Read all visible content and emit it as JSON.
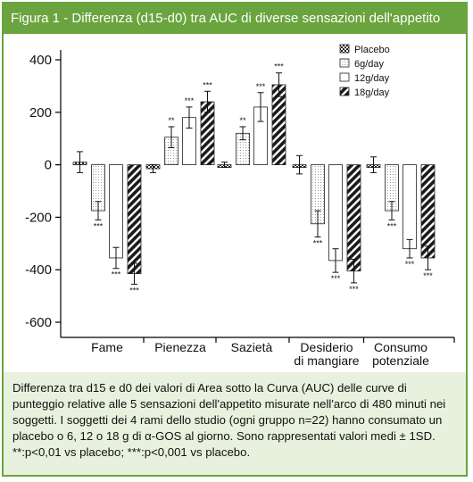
{
  "header": {
    "title": "Figura 1 - Differenza (d15-d0) tra AUC di diverse sensazioni dell'appetito"
  },
  "caption": {
    "text": "Differenza tra d15 e d0 dei valori di Area sotto la Curva (AUC) delle curve di punteggio relative alle 5 sensazioni dell'appetito misurate nell'arco di 480 minuti nei soggetti. I soggetti dei 4 rami dello studio (ogni gruppo n=22) hanno consumato un placebo o 6, 12 o 18 g di α-GOS al giorno. Sono rappresentati valori medi ± 1SD. **:p<0,01 vs placebo; ***:p<0,001 vs placebo."
  },
  "chart_data": {
    "type": "bar",
    "title": "",
    "xlabel": "",
    "ylabel": "",
    "ylim": [
      -650,
      430
    ],
    "yticks": [
      400,
      200,
      0,
      -200,
      -400,
      -600
    ],
    "categories": [
      "Fame",
      "Pienezza",
      "Sazietà",
      "Desiderio di mangiare",
      "Consumo potenziale"
    ],
    "category_labels": [
      [
        "Fame"
      ],
      [
        "Pienezza"
      ],
      [
        "Sazietà"
      ],
      [
        "Desiderio",
        "di mangiare"
      ],
      [
        "Consumo",
        "potenziale"
      ]
    ],
    "legend_position": "top-right",
    "series": [
      {
        "name": "Placebo",
        "pattern": "checker",
        "values": [
          10,
          -15,
          0,
          0,
          0
        ],
        "errors": [
          40,
          15,
          10,
          35,
          30
        ],
        "sig": [
          "",
          "",
          "",
          "",
          ""
        ]
      },
      {
        "name": "6g/day",
        "pattern": "dots",
        "values": [
          -175,
          105,
          120,
          -225,
          -175
        ],
        "errors": [
          35,
          40,
          25,
          50,
          35
        ],
        "sig": [
          "***",
          "**",
          "**",
          "***",
          "***"
        ]
      },
      {
        "name": "12g/day",
        "pattern": "white",
        "values": [
          -355,
          180,
          220,
          -365,
          -320
        ],
        "errors": [
          40,
          40,
          55,
          45,
          35
        ],
        "sig": [
          "***",
          "***",
          "***",
          "***",
          "***"
        ]
      },
      {
        "name": "18g/day",
        "pattern": "hatch",
        "values": [
          -415,
          240,
          305,
          -405,
          -355
        ],
        "errors": [
          40,
          40,
          45,
          45,
          45
        ],
        "sig": [
          "***",
          "***",
          "***",
          "***",
          "***"
        ]
      }
    ]
  }
}
